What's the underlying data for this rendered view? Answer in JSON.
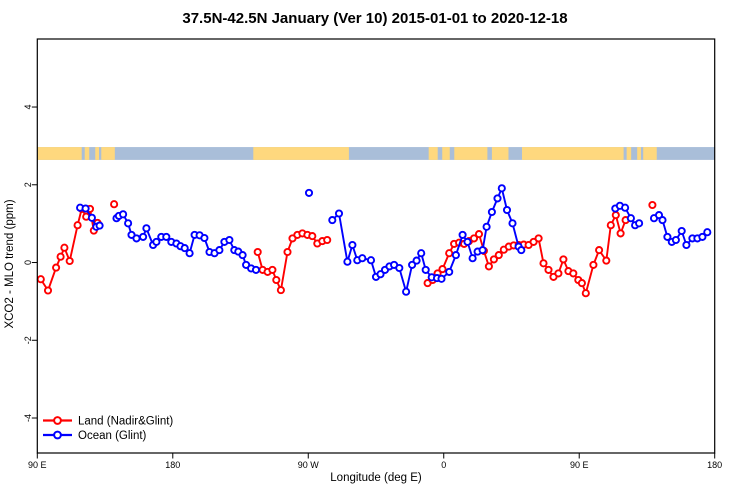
{
  "title": "37.5N-42.5N January (Ver 10)   2015-01-01 to 2020-12-18",
  "chart_data": {
    "type": "line",
    "title": "37.5N-42.5N January (Ver 10)   2015-01-01 to 2020-12-18",
    "xlabel": "Longitude (deg E)",
    "ylabel": "XCO2 - MLO trend (ppm)",
    "xlim": [
      90,
      540
    ],
    "ylim": [
      -4.9,
      5.75
    ],
    "grid": false,
    "legend_position": "bottom-left",
    "x_ticks": [
      {
        "value": 90,
        "label": "90 E"
      },
      {
        "value": 180,
        "label": "180"
      },
      {
        "value": 270,
        "label": "90 W"
      },
      {
        "value": 360,
        "label": "0"
      },
      {
        "value": 450,
        "label": "90 E"
      },
      {
        "value": 540,
        "label": "180"
      }
    ],
    "y_ticks": [
      {
        "value": -4,
        "label": "-4"
      },
      {
        "value": -2,
        "label": "-2"
      },
      {
        "value": 0,
        "label": "0"
      },
      {
        "value": 2,
        "label": "2"
      },
      {
        "value": 4,
        "label": "4"
      }
    ],
    "band": {
      "description": "land/ocean map strip along latitude band",
      "y_top_value": 2.97,
      "y_bottom_value": 2.64,
      "ocean_color": "#a9bed9",
      "land_color": "#fed87e",
      "land_segments": [
        [
          90,
          119.5
        ],
        [
          121.5,
          124.5
        ],
        [
          128.5,
          131
        ],
        [
          132.5,
          141.5
        ],
        [
          233.5,
          297
        ],
        [
          350,
          356
        ],
        [
          359,
          364
        ],
        [
          367,
          389
        ],
        [
          392,
          403
        ],
        [
          412,
          479.5
        ],
        [
          481.5,
          484.5
        ],
        [
          488.5,
          491
        ],
        [
          492.5,
          501.5
        ]
      ]
    },
    "marker": "open-circle",
    "gap_break_threshold": 8,
    "series": [
      {
        "name": "Land (Nadir&Glint)",
        "color": "#ff0000",
        "points": [
          [
            92.3,
            -0.43
          ],
          [
            97.1,
            -0.72
          ],
          [
            102.5,
            -0.13
          ],
          [
            105.5,
            0.15
          ],
          [
            108,
            0.38
          ],
          [
            111.5,
            0.04
          ],
          [
            116.8,
            0.96
          ],
          [
            119.5,
            1.38
          ],
          [
            122.5,
            1.18
          ],
          [
            125,
            1.38
          ],
          [
            127.5,
            0.82
          ],
          [
            130,
            1.02
          ],
          [
            141,
            1.5
          ],
          [
            236.4,
            0.27
          ],
          [
            239.7,
            -0.19
          ],
          [
            243,
            -0.24
          ],
          [
            246.2,
            -0.19
          ],
          [
            248.8,
            -0.45
          ],
          [
            251.8,
            -0.71
          ],
          [
            256.2,
            0.27
          ],
          [
            259.5,
            0.62
          ],
          [
            262.8,
            0.71
          ],
          [
            266.1,
            0.75
          ],
          [
            269.4,
            0.71
          ],
          [
            272.7,
            0.68
          ],
          [
            276,
            0.49
          ],
          [
            279.3,
            0.55
          ],
          [
            282.6,
            0.58
          ],
          [
            349.3,
            -0.53
          ],
          [
            352.6,
            -0.45
          ],
          [
            355.9,
            -0.28
          ],
          [
            359.2,
            -0.17
          ],
          [
            363.6,
            0.24
          ],
          [
            366.9,
            0.48
          ],
          [
            370.2,
            0.51
          ],
          [
            373.5,
            0.48
          ],
          [
            376.8,
            0.55
          ],
          [
            380.1,
            0.62
          ],
          [
            383.4,
            0.73
          ],
          [
            386.7,
            0.3
          ],
          [
            390,
            -0.1
          ],
          [
            393.3,
            0.08
          ],
          [
            396.6,
            0.19
          ],
          [
            399.9,
            0.33
          ],
          [
            403.2,
            0.41
          ],
          [
            406.5,
            0.44
          ],
          [
            409.8,
            0.45
          ],
          [
            413.1,
            0.46
          ],
          [
            416.4,
            0.45
          ],
          [
            419.7,
            0.53
          ],
          [
            423,
            0.62
          ],
          [
            426.3,
            -0.02
          ],
          [
            429.6,
            -0.19
          ],
          [
            432.9,
            -0.37
          ],
          [
            436.2,
            -0.28
          ],
          [
            439.5,
            0.08
          ],
          [
            442.8,
            -0.22
          ],
          [
            446.1,
            -0.28
          ],
          [
            449.4,
            -0.45
          ],
          [
            451.8,
            -0.53
          ],
          [
            454.4,
            -0.79
          ],
          [
            459.4,
            -0.06
          ],
          [
            463.2,
            0.32
          ],
          [
            468,
            0.05
          ],
          [
            471,
            0.96
          ],
          [
            474.3,
            1.22
          ],
          [
            477.5,
            0.75
          ],
          [
            480.8,
            1.09
          ],
          [
            498.6,
            1.48
          ]
        ]
      },
      {
        "name": "Ocean (Glint)",
        "color": "#0000ff",
        "points": [
          [
            118.4,
            1.41
          ],
          [
            122.1,
            1.39
          ],
          [
            126.3,
            1.15
          ],
          [
            129.2,
            0.92
          ],
          [
            131.4,
            0.95
          ],
          [
            142.6,
            1.14
          ],
          [
            144.2,
            1.2
          ],
          [
            147,
            1.24
          ],
          [
            150.3,
            1.01
          ],
          [
            152.6,
            0.71
          ],
          [
            155.9,
            0.62
          ],
          [
            160.3,
            0.66
          ],
          [
            162.5,
            0.88
          ],
          [
            166.9,
            0.45
          ],
          [
            169.1,
            0.53
          ],
          [
            172.4,
            0.66
          ],
          [
            175.7,
            0.66
          ],
          [
            179,
            0.53
          ],
          [
            182.4,
            0.49
          ],
          [
            185.1,
            0.42
          ],
          [
            187.9,
            0.37
          ],
          [
            191.2,
            0.24
          ],
          [
            194.5,
            0.71
          ],
          [
            197.8,
            0.7
          ],
          [
            201,
            0.63
          ],
          [
            204.4,
            0.27
          ],
          [
            207.7,
            0.24
          ],
          [
            211,
            0.32
          ],
          [
            214.3,
            0.53
          ],
          [
            217.6,
            0.58
          ],
          [
            220.9,
            0.32
          ],
          [
            223.5,
            0.28
          ],
          [
            226.4,
            0.19
          ],
          [
            228.7,
            -0.06
          ],
          [
            232,
            -0.15
          ],
          [
            235.3,
            -0.19
          ],
          [
            270.5,
            1.79
          ],
          [
            286,
            1.09
          ],
          [
            290.4,
            1.26
          ],
          [
            296,
            0.02
          ],
          [
            299.3,
            0.45
          ],
          [
            302.6,
            0.06
          ],
          [
            305.9,
            0.11
          ],
          [
            311.7,
            0.06
          ],
          [
            315,
            -0.37
          ],
          [
            318,
            -0.3
          ],
          [
            321,
            -0.19
          ],
          [
            324,
            -0.1
          ],
          [
            327,
            -0.06
          ],
          [
            330.5,
            -0.14
          ],
          [
            335,
            -0.75
          ],
          [
            339,
            -0.06
          ],
          [
            342,
            0.05
          ],
          [
            345,
            0.24
          ],
          [
            348,
            -0.19
          ],
          [
            352,
            -0.38
          ],
          [
            355.5,
            -0.4
          ],
          [
            358.5,
            -0.42
          ],
          [
            363.6,
            -0.24
          ],
          [
            368.1,
            0.19
          ],
          [
            372.5,
            0.71
          ],
          [
            375.8,
            0.53
          ],
          [
            379.2,
            0.11
          ],
          [
            382.5,
            0.28
          ],
          [
            385.8,
            0.32
          ],
          [
            388.5,
            0.92
          ],
          [
            392,
            1.3
          ],
          [
            395.7,
            1.65
          ],
          [
            398.6,
            1.91
          ],
          [
            402,
            1.35
          ],
          [
            405.7,
            1.01
          ],
          [
            409.7,
            0.41
          ],
          [
            411.5,
            0.32
          ],
          [
            474,
            1.39
          ],
          [
            477,
            1.46
          ],
          [
            480.5,
            1.41
          ],
          [
            484.3,
            1.14
          ],
          [
            487.1,
            0.96
          ],
          [
            489.8,
            1.01
          ],
          [
            499.7,
            1.14
          ],
          [
            503,
            1.22
          ],
          [
            505.3,
            1.09
          ],
          [
            508.6,
            0.66
          ],
          [
            511.5,
            0.53
          ],
          [
            514.2,
            0.58
          ],
          [
            518.1,
            0.81
          ],
          [
            521.2,
            0.45
          ],
          [
            525.2,
            0.62
          ],
          [
            528.5,
            0.62
          ],
          [
            531.8,
            0.66
          ],
          [
            535.1,
            0.78
          ]
        ]
      }
    ]
  }
}
